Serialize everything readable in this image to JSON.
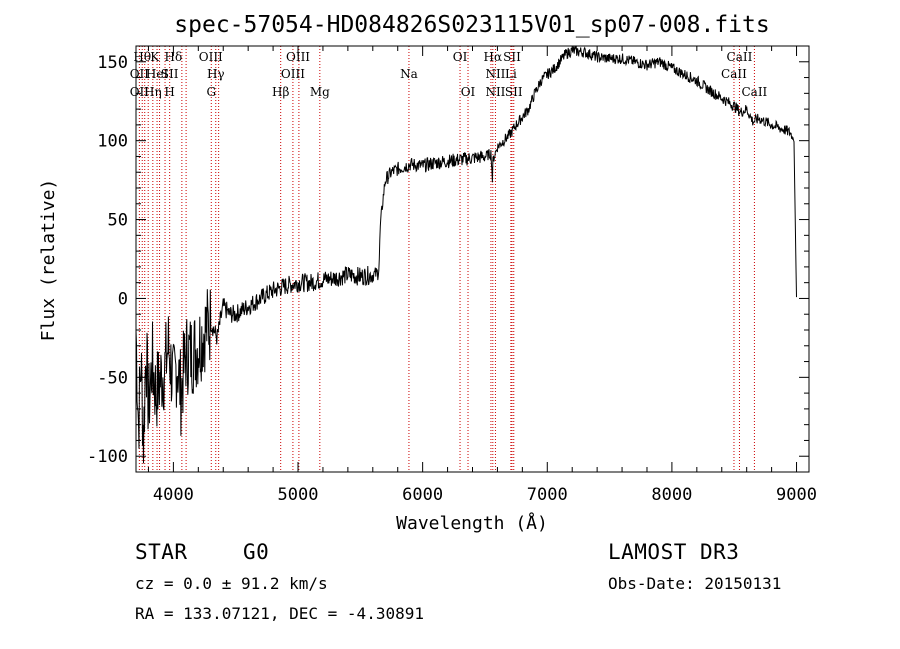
{
  "chart_data": {
    "type": "line",
    "title": "spec-57054-HD084826S023115V01_sp07-008.fits",
    "xlabel": "Wavelength (Å)",
    "ylabel": "Flux (relative)",
    "xlim": [
      3700,
      9100
    ],
    "ylim": [
      -110,
      160
    ],
    "xticks": [
      4000,
      5000,
      6000,
      7000,
      8000,
      9000
    ],
    "yticks": [
      -100,
      -50,
      0,
      50,
      100,
      150
    ],
    "series": [
      {
        "name": "flux",
        "x": [
          3700,
          3720,
          3740,
          3760,
          3780,
          3800,
          3830,
          3860,
          3900,
          3930,
          3960,
          4000,
          4030,
          4060,
          4100,
          4150,
          4200,
          4250,
          4300,
          4350,
          4400,
          4450,
          4500,
          4600,
          4700,
          4800,
          4900,
          5000,
          5100,
          5200,
          5300,
          5400,
          5500,
          5600,
          5640,
          5650,
          5660,
          5680,
          5700,
          5750,
          5800,
          5900,
          6000,
          6100,
          6200,
          6300,
          6400,
          6500,
          6550,
          6560,
          6565,
          6600,
          6650,
          6700,
          6750,
          6800,
          6850,
          6900,
          6950,
          7000,
          7050,
          7100,
          7150,
          7200,
          7300,
          7400,
          7500,
          7600,
          7700,
          7800,
          7900,
          8000,
          8100,
          8200,
          8300,
          8400,
          8500,
          8550,
          8600,
          8650,
          8700,
          8800,
          8900,
          8950,
          8980,
          8990,
          9000
        ],
        "y": [
          -20,
          -80,
          -40,
          -90,
          -30,
          -70,
          -40,
          -60,
          -50,
          -45,
          -30,
          -55,
          -40,
          -60,
          -35,
          -35,
          -30,
          -20,
          -15,
          -25,
          -5,
          -10,
          -10,
          -5,
          0,
          5,
          8,
          10,
          10,
          12,
          13,
          15,
          14,
          15,
          16,
          20,
          45,
          62,
          75,
          80,
          82,
          85,
          84,
          86,
          87,
          88,
          89,
          90,
          92,
          75,
          88,
          96,
          100,
          104,
          110,
          115,
          120,
          130,
          138,
          142,
          145,
          150,
          155,
          157,
          156,
          153,
          152,
          152,
          150,
          148,
          150,
          146,
          142,
          138,
          132,
          127,
          122,
          118,
          120,
          112,
          114,
          110,
          107,
          105,
          100,
          50,
          0
        ]
      }
    ],
    "line_labels_top": [
      {
        "wl": 3750,
        "text": "Hθ"
      },
      {
        "wl": 3850,
        "text": "K"
      },
      {
        "wl": 4000,
        "text": "Hδ"
      },
      {
        "wl": 4300,
        "text": "OIII"
      },
      {
        "wl": 5000,
        "text": "OIII"
      },
      {
        "wl": 6300,
        "text": "OI"
      },
      {
        "wl": 6563,
        "text": "Hα"
      },
      {
        "wl": 6717,
        "text": "SII"
      },
      {
        "wl": 8542,
        "text": "CaII"
      }
    ],
    "line_labels_mid": [
      {
        "wl": 3727,
        "text": "OII"
      },
      {
        "wl": 3869,
        "text": "HeI"
      },
      {
        "wl": 3970,
        "text": "SII"
      },
      {
        "wl": 4340,
        "text": "Hγ"
      },
      {
        "wl": 4959,
        "text": "OIII"
      },
      {
        "wl": 5890,
        "text": "Na"
      },
      {
        "wl": 6584,
        "text": "NII"
      },
      {
        "wl": 6708,
        "text": "Li"
      },
      {
        "wl": 8498,
        "text": "CaII"
      }
    ],
    "line_labels_low": [
      {
        "wl": 3727,
        "text": "OII"
      },
      {
        "wl": 3835,
        "text": "Hη"
      },
      {
        "wl": 3970,
        "text": "H"
      },
      {
        "wl": 4304,
        "text": "G"
      },
      {
        "wl": 4861,
        "text": "Hβ"
      },
      {
        "wl": 5175,
        "text": "Mg"
      },
      {
        "wl": 6364,
        "text": "OI"
      },
      {
        "wl": 6584,
        "text": "NII"
      },
      {
        "wl": 6731,
        "text": "SII"
      },
      {
        "wl": 8662,
        "text": "CaII"
      }
    ],
    "emission_lines_wl": [
      3727,
      3750,
      3770,
      3798,
      3835,
      3869,
      3889,
      3933,
      3970,
      4068,
      4102,
      4304,
      4340,
      4363,
      4861,
      4959,
      5007,
      5175,
      5890,
      6300,
      6364,
      6548,
      6563,
      6584,
      6708,
      6717,
      6731,
      8498,
      8542,
      8662
    ]
  },
  "info": {
    "object_type": "STAR",
    "subclass": "G0",
    "survey": "LAMOST DR3",
    "redshift": "cz = 0.0 ± 91.2 km/s",
    "obs_date": "Obs-Date: 20150131",
    "coordinates": "RA = 133.07121, DEC =  -4.30891"
  },
  "colors": {
    "line_marker": "#cc0000",
    "spectrum": "#000000"
  }
}
